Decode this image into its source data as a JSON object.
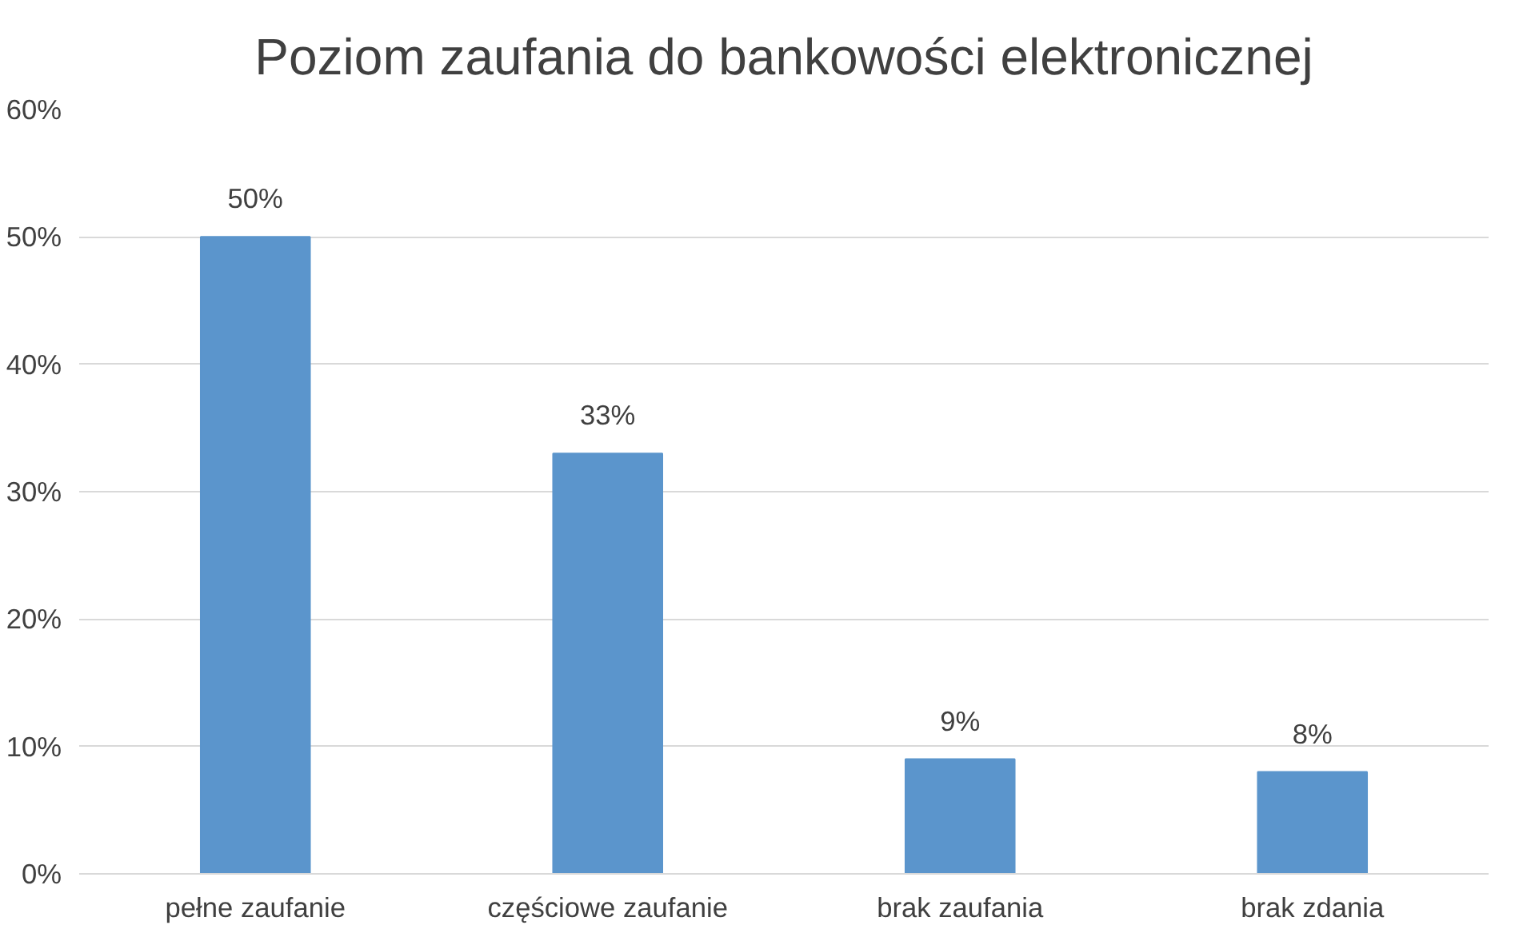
{
  "chart_data": {
    "type": "bar",
    "title": "Poziom zaufania do bankowości elektronicznej",
    "categories": [
      "pełne zaufanie",
      "częściowe zaufanie",
      "brak zaufania",
      "brak zdania"
    ],
    "values": [
      50,
      33,
      9,
      8
    ],
    "color": "#5b95cc",
    "value_labels": [
      "50%",
      "33%",
      "9%",
      "8%"
    ],
    "ylim": [
      0,
      60
    ],
    "yticks": [
      {
        "value": 0,
        "label": "0%"
      },
      {
        "value": 10,
        "label": "10%"
      },
      {
        "value": 20,
        "label": "20%"
      },
      {
        "value": 30,
        "label": "30%"
      },
      {
        "value": 40,
        "label": "40%"
      },
      {
        "value": 50,
        "label": "50%"
      },
      {
        "value": 60,
        "label": "60%"
      }
    ],
    "grid": "y"
  }
}
